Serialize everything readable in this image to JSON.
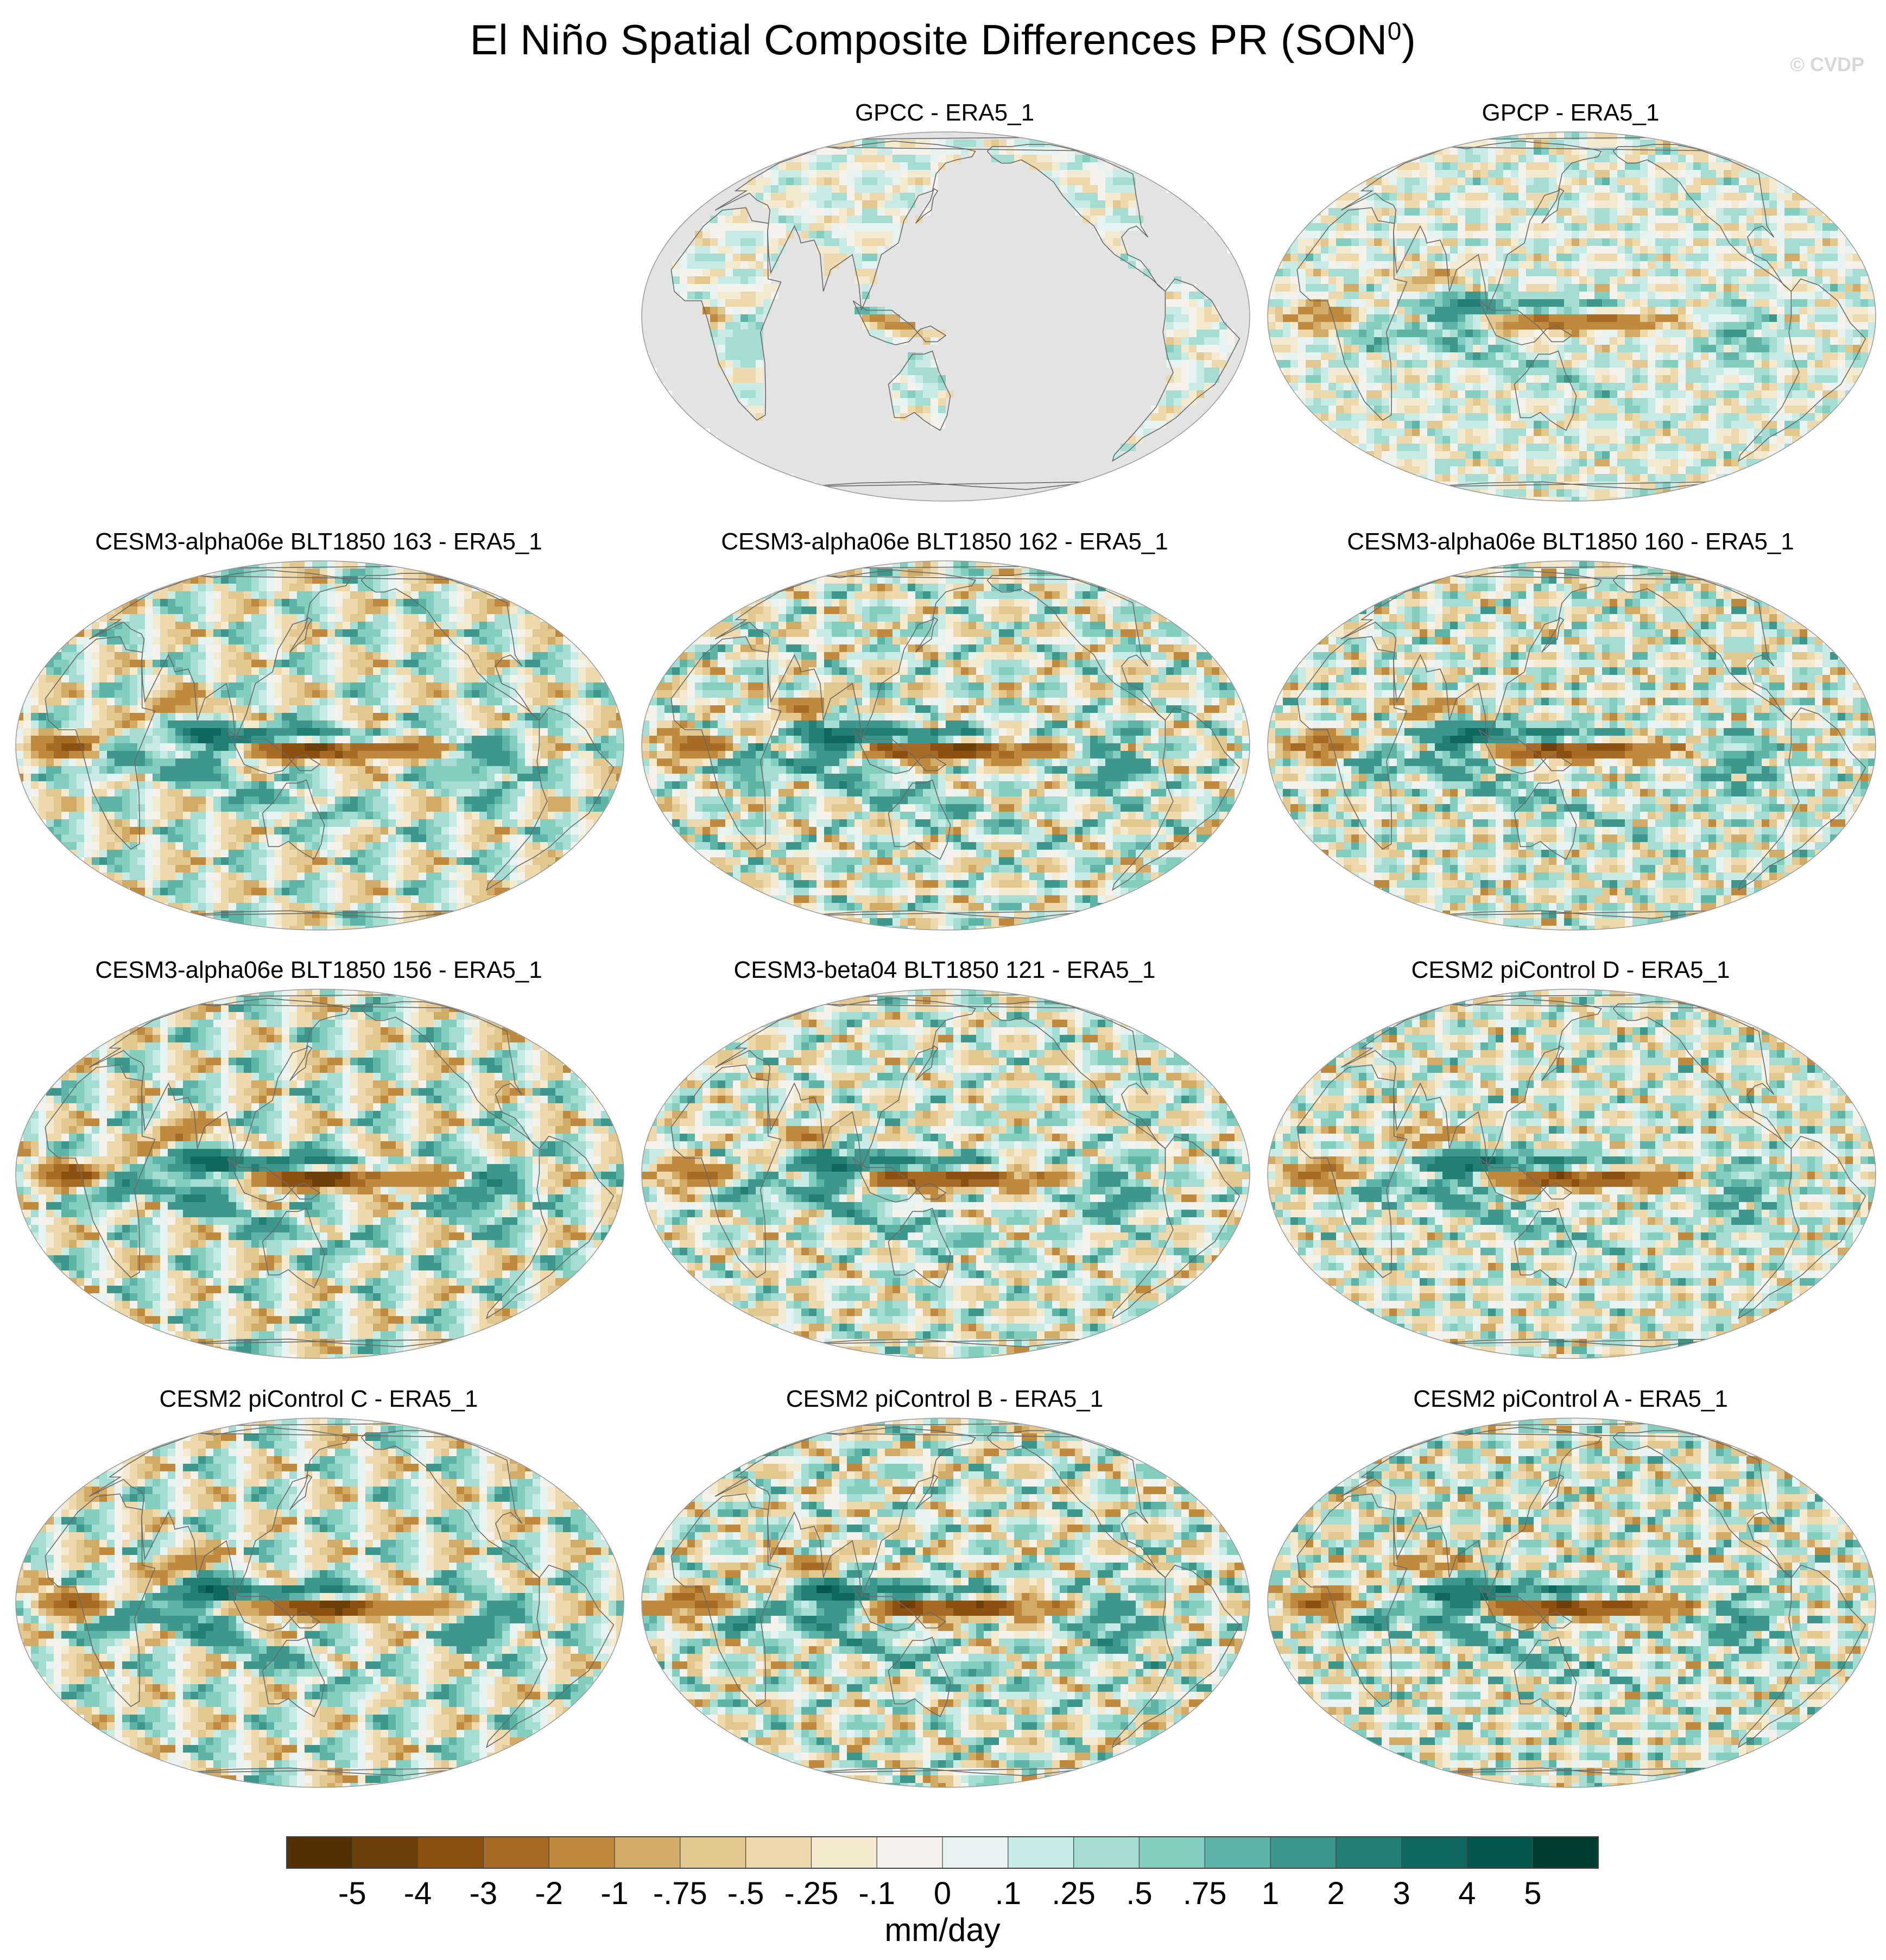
{
  "figure": {
    "title": "El Niño Spatial Composite Differences PR (SON",
    "title_superscript": "0",
    "title_close": ")",
    "credit": "© CVDP"
  },
  "chart_data": {
    "type": "heatmap",
    "projection": "Robinson-like global map, Pacific-centered",
    "variable": "PR",
    "season": "SON0",
    "units": "mm/day",
    "panels": [
      {
        "title": "GPCC - ERA5_1",
        "land_only": true,
        "amp": 0.45
      },
      {
        "title": "GPCP - ERA5_1",
        "land_only": false,
        "amp": 0.6
      },
      {
        "title": "CESM3-alpha06e BLT1850 163 - ERA5_1",
        "land_only": false,
        "amp": 1.0
      },
      {
        "title": "CESM3-alpha06e BLT1850 162 - ERA5_1",
        "land_only": false,
        "amp": 1.05
      },
      {
        "title": "CESM3-alpha06e BLT1850 160 - ERA5_1",
        "land_only": false,
        "amp": 0.95
      },
      {
        "title": "CESM3-alpha06e BLT1850 156 - ERA5_1",
        "land_only": false,
        "amp": 1.1
      },
      {
        "title": "CESM3-beta04 BLT1850 121 - ERA5_1",
        "land_only": false,
        "amp": 0.95
      },
      {
        "title": "CESM2 piControl D - ERA5_1",
        "land_only": false,
        "amp": 0.9
      },
      {
        "title": "CESM2 piControl C - ERA5_1",
        "land_only": false,
        "amp": 1.05
      },
      {
        "title": "CESM2 piControl B - ERA5_1",
        "land_only": false,
        "amp": 1.1
      },
      {
        "title": "CESM2 piControl A - ERA5_1",
        "land_only": false,
        "amp": 1.05
      }
    ],
    "colorbar": {
      "levels": [
        "-5",
        "-4",
        "-3",
        "-2",
        "-1",
        "-.75",
        "-.5",
        "-.25",
        "-.1",
        "0",
        ".1",
        ".25",
        ".5",
        ".75",
        "1",
        "2",
        "3",
        "4",
        "5"
      ],
      "colors": [
        "#543005",
        "#6d3f0b",
        "#8c5110",
        "#a76b25",
        "#bf8a3e",
        "#d2ac67",
        "#e2c88f",
        "#edd9ac",
        "#f4ead0",
        "#f5f2eb",
        "#e6f3f1",
        "#c8ebe5",
        "#a5dcd3",
        "#84cdc1",
        "#5fb4a8",
        "#3e978c",
        "#227f74",
        "#0f675d",
        "#05574d",
        "#003c30"
      ],
      "label": "mm/day"
    },
    "ocean_mask_color": "#e3e3e3"
  }
}
